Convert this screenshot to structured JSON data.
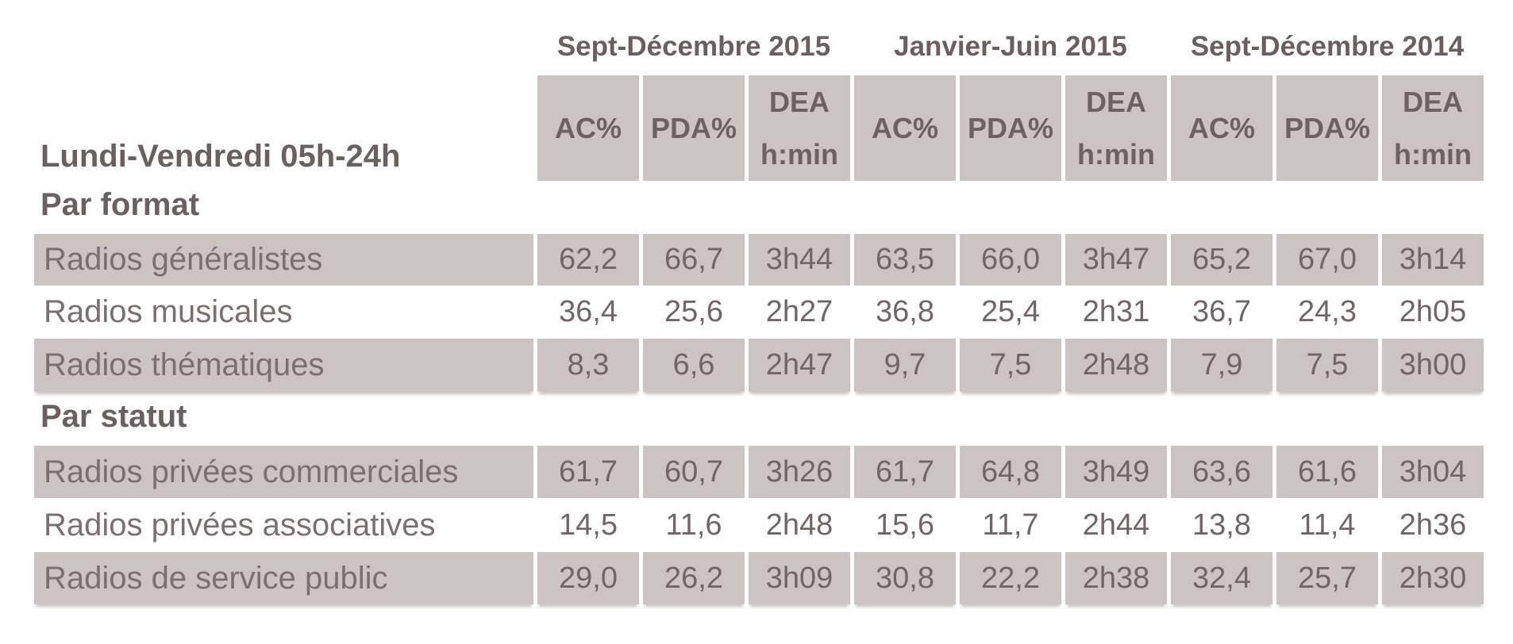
{
  "table": {
    "row_header": "Lundi-Vendredi 05h-24h",
    "periods": [
      {
        "label": "Sept-Décembre 2015"
      },
      {
        "label": "Janvier-Juin 2015"
      },
      {
        "label": "Sept-Décembre 2014"
      }
    ],
    "metric_headers": {
      "ac": "AC%",
      "pda": "PDA%",
      "dea_line1": "DEA",
      "dea_line2": "h:min"
    },
    "sections": [
      {
        "title": "Par format",
        "rows": [
          {
            "label": "Radios généralistes",
            "shaded": true,
            "values": [
              "62,2",
              "66,7",
              "3h44",
              "63,5",
              "66,0",
              "3h47",
              "65,2",
              "67,0",
              "3h14"
            ]
          },
          {
            "label": "Radios musicales",
            "shaded": false,
            "values": [
              "36,4",
              "25,6",
              "2h27",
              "36,8",
              "25,4",
              "2h31",
              "36,7",
              "24,3",
              "2h05"
            ]
          },
          {
            "label": "Radios thématiques",
            "shaded": true,
            "values": [
              "8,3",
              "6,6",
              "2h47",
              "9,7",
              "7,5",
              "2h48",
              "7,9",
              "7,5",
              "3h00"
            ]
          }
        ]
      },
      {
        "title": "Par statut",
        "rows": [
          {
            "label": "Radios privées commerciales",
            "shaded": true,
            "values": [
              "61,7",
              "60,7",
              "3h26",
              "61,7",
              "64,8",
              "3h49",
              "63,6",
              "61,6",
              "3h04"
            ]
          },
          {
            "label": "Radios privées associatives",
            "shaded": false,
            "values": [
              "14,5",
              "11,6",
              "2h48",
              "15,6",
              "11,7",
              "2h44",
              "13,8",
              "11,4",
              "2h36"
            ]
          },
          {
            "label": "Radios de service public",
            "shaded": true,
            "values": [
              "29,0",
              "26,2",
              "3h09",
              "30,8",
              "22,2",
              "2h38",
              "32,4",
              "25,7",
              "2h30"
            ]
          }
        ]
      }
    ],
    "colors": {
      "cell_background": "#ccc4c3",
      "bold_text": "#6a5f5e",
      "value_text": "#716665",
      "label_text": "#7b706f",
      "page_background": "#ffffff"
    }
  },
  "chart_data": {
    "type": "table",
    "title": "Lundi-Vendredi 05h-24h",
    "column_groups": [
      "Sept-Décembre 2015",
      "Janvier-Juin 2015",
      "Sept-Décembre 2014"
    ],
    "columns_per_group": [
      "AC%",
      "PDA%",
      "DEA h:min"
    ],
    "sections": [
      {
        "name": "Par format",
        "rows": [
          {
            "label": "Radios généralistes",
            "values": [
              "62,2",
              "66,7",
              "3h44",
              "63,5",
              "66,0",
              "3h47",
              "65,2",
              "67,0",
              "3h14"
            ]
          },
          {
            "label": "Radios musicales",
            "values": [
              "36,4",
              "25,6",
              "2h27",
              "36,8",
              "25,4",
              "2h31",
              "36,7",
              "24,3",
              "2h05"
            ]
          },
          {
            "label": "Radios thématiques",
            "values": [
              "8,3",
              "6,6",
              "2h47",
              "9,7",
              "7,5",
              "2h48",
              "7,9",
              "7,5",
              "3h00"
            ]
          }
        ]
      },
      {
        "name": "Par statut",
        "rows": [
          {
            "label": "Radios privées commerciales",
            "values": [
              "61,7",
              "60,7",
              "3h26",
              "61,7",
              "64,8",
              "3h49",
              "63,6",
              "61,6",
              "3h04"
            ]
          },
          {
            "label": "Radios privées associatives",
            "values": [
              "14,5",
              "11,6",
              "2h48",
              "15,6",
              "11,7",
              "2h44",
              "13,8",
              "11,4",
              "2h36"
            ]
          },
          {
            "label": "Radios de service public",
            "values": [
              "29,0",
              "26,2",
              "3h09",
              "30,8",
              "22,2",
              "2h38",
              "32,4",
              "25,7",
              "2h30"
            ]
          }
        ]
      }
    ]
  }
}
